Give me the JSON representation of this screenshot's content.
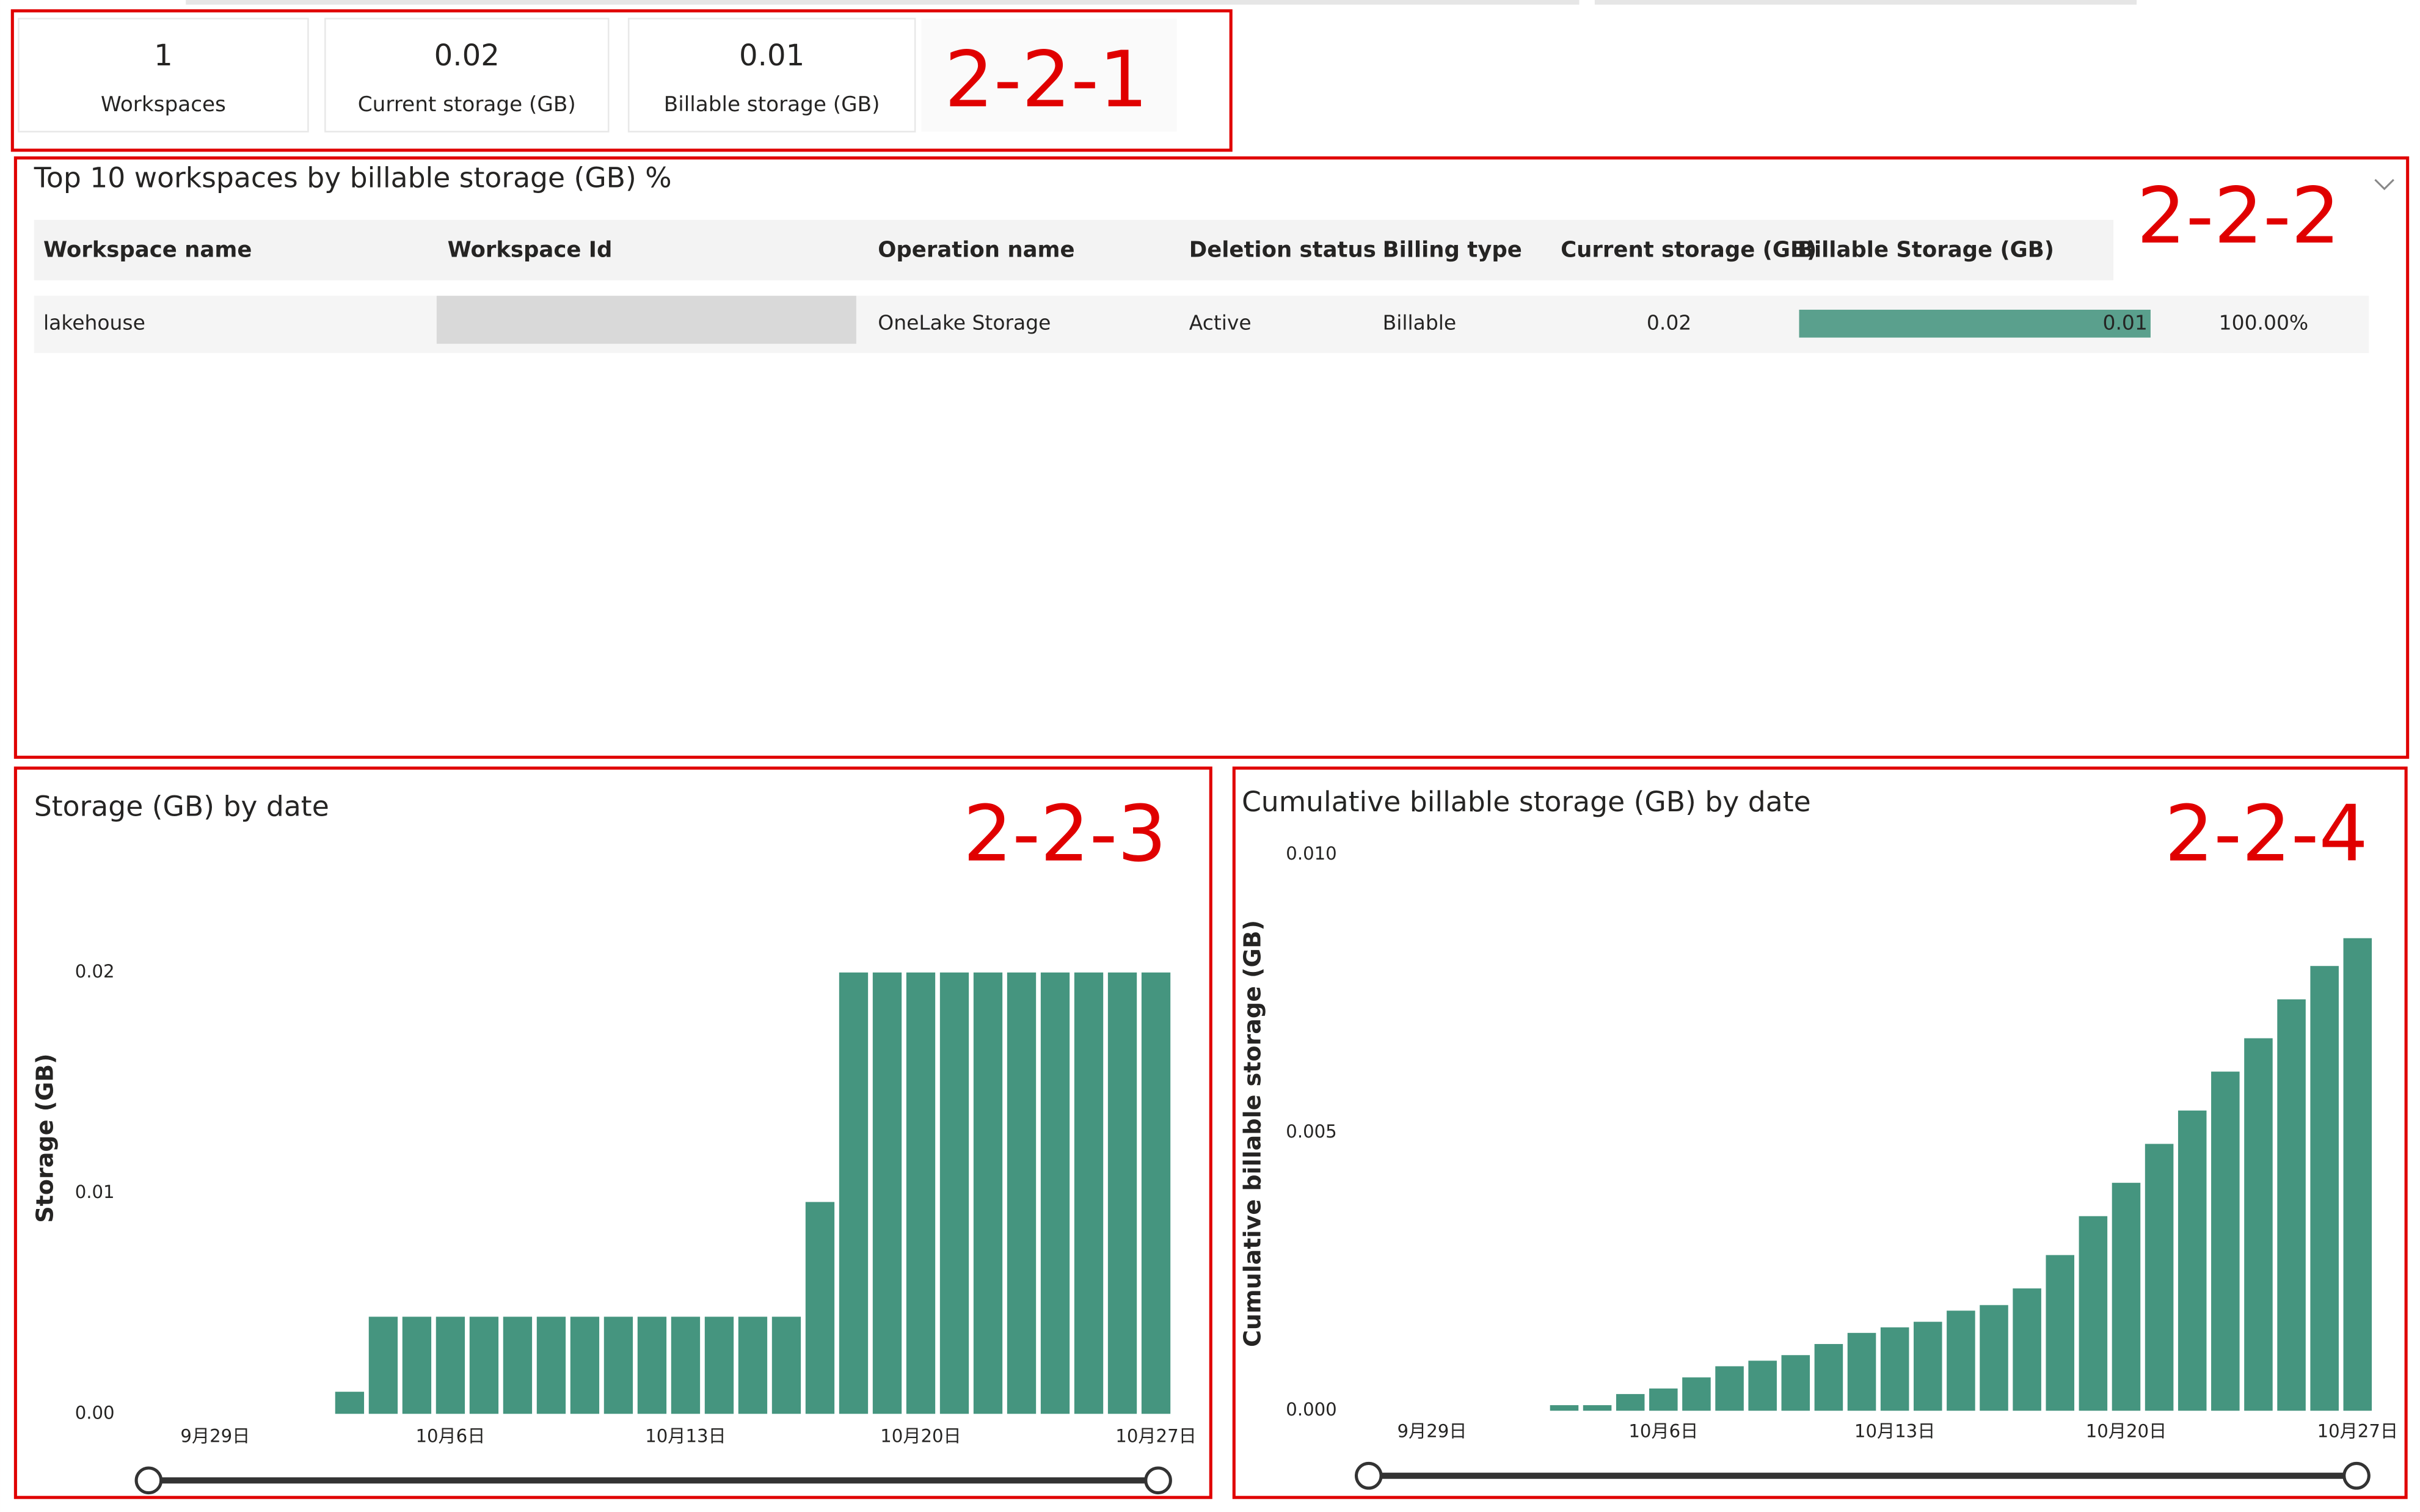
{
  "cards": [
    {
      "value": 1,
      "label": "Workspaces"
    },
    {
      "value": 0.02,
      "label": "Current storage (GB)"
    },
    {
      "value": 0.01,
      "label": "Billable storage (GB)"
    }
  ],
  "table": {
    "title": "Top 10 workspaces by billable storage (GB) %",
    "header": [
      "Workspace name",
      "Workspace Id",
      "Operation name",
      "Deletion status",
      "Billing type",
      "Current storage (GB)",
      "Billable Storage (GB)"
    ],
    "rows": [
      {
        "workspace_name": "lakehouse",
        "operation_name": "OneLake Storage",
        "deletion_status": "Active",
        "billing_type": "Billable",
        "current_storage": 0.02,
        "billable_storage": 0.01,
        "percent": "100.00%"
      }
    ]
  },
  "annotations": [
    "2-2-1",
    "2-2-2",
    "2-2-3",
    "2-2-4"
  ],
  "chart_data": [
    {
      "type": "bar",
      "title": "Storage (GB) by date",
      "y_label": "Storage (GB)",
      "color": "#45957f",
      "categories": [
        null,
        null,
        "9月29日",
        null,
        null,
        null,
        null,
        null,
        null,
        "10月6日",
        null,
        null,
        null,
        null,
        null,
        null,
        "10月13日",
        null,
        null,
        null,
        null,
        null,
        null,
        "10月20日",
        null,
        null,
        null,
        null,
        null,
        null,
        "10月27日"
      ],
      "values": [
        null,
        null,
        null,
        null,
        null,
        null,
        0.001,
        0.0044,
        0.0044,
        0.0044,
        0.0044,
        0.0044,
        0.0044,
        0.0044,
        0.0044,
        0.0044,
        0.0044,
        0.0044,
        0.0044,
        0.0044,
        0.0096,
        0.02,
        0.02,
        0.02,
        0.02,
        0.02,
        0.02,
        0.02,
        0.02,
        0.02,
        0.02
      ],
      "ylim": [
        0,
        0.02
      ],
      "yticks": [
        {
          "value": 0,
          "label": "0.00"
        },
        0.01,
        0.02
      ]
    },
    {
      "type": "bar",
      "title": "Cumulative billable storage (GB) by date",
      "y_label": "Cumulative billable storage (GB)",
      "color": "#45957f",
      "categories": [
        null,
        null,
        "9月29日",
        null,
        null,
        null,
        null,
        null,
        null,
        "10月6日",
        null,
        null,
        null,
        null,
        null,
        null,
        "10月13日",
        null,
        null,
        null,
        null,
        null,
        null,
        "10月20日",
        null,
        null,
        null,
        null,
        null,
        null,
        "10月27日"
      ],
      "values": [
        null,
        null,
        null,
        null,
        null,
        null,
        0.0001,
        0.0001,
        0.0003,
        0.0004,
        0.0006,
        0.0008,
        0.0009,
        0.001,
        0.0012,
        0.0014,
        0.0015,
        0.0016,
        0.0018,
        0.0019,
        0.0022,
        0.0028,
        0.0035,
        0.0041,
        0.0048,
        0.0054,
        0.0061,
        0.0067,
        0.0074,
        0.008,
        0.0085
      ],
      "ylim": [
        0,
        0.01
      ],
      "yticks": [
        {
          "value": 0,
          "label": "0.000"
        },
        {
          "value": 0.005,
          "label": "0.005"
        },
        {
          "value": 0.01,
          "label": "0.010"
        }
      ]
    }
  ]
}
